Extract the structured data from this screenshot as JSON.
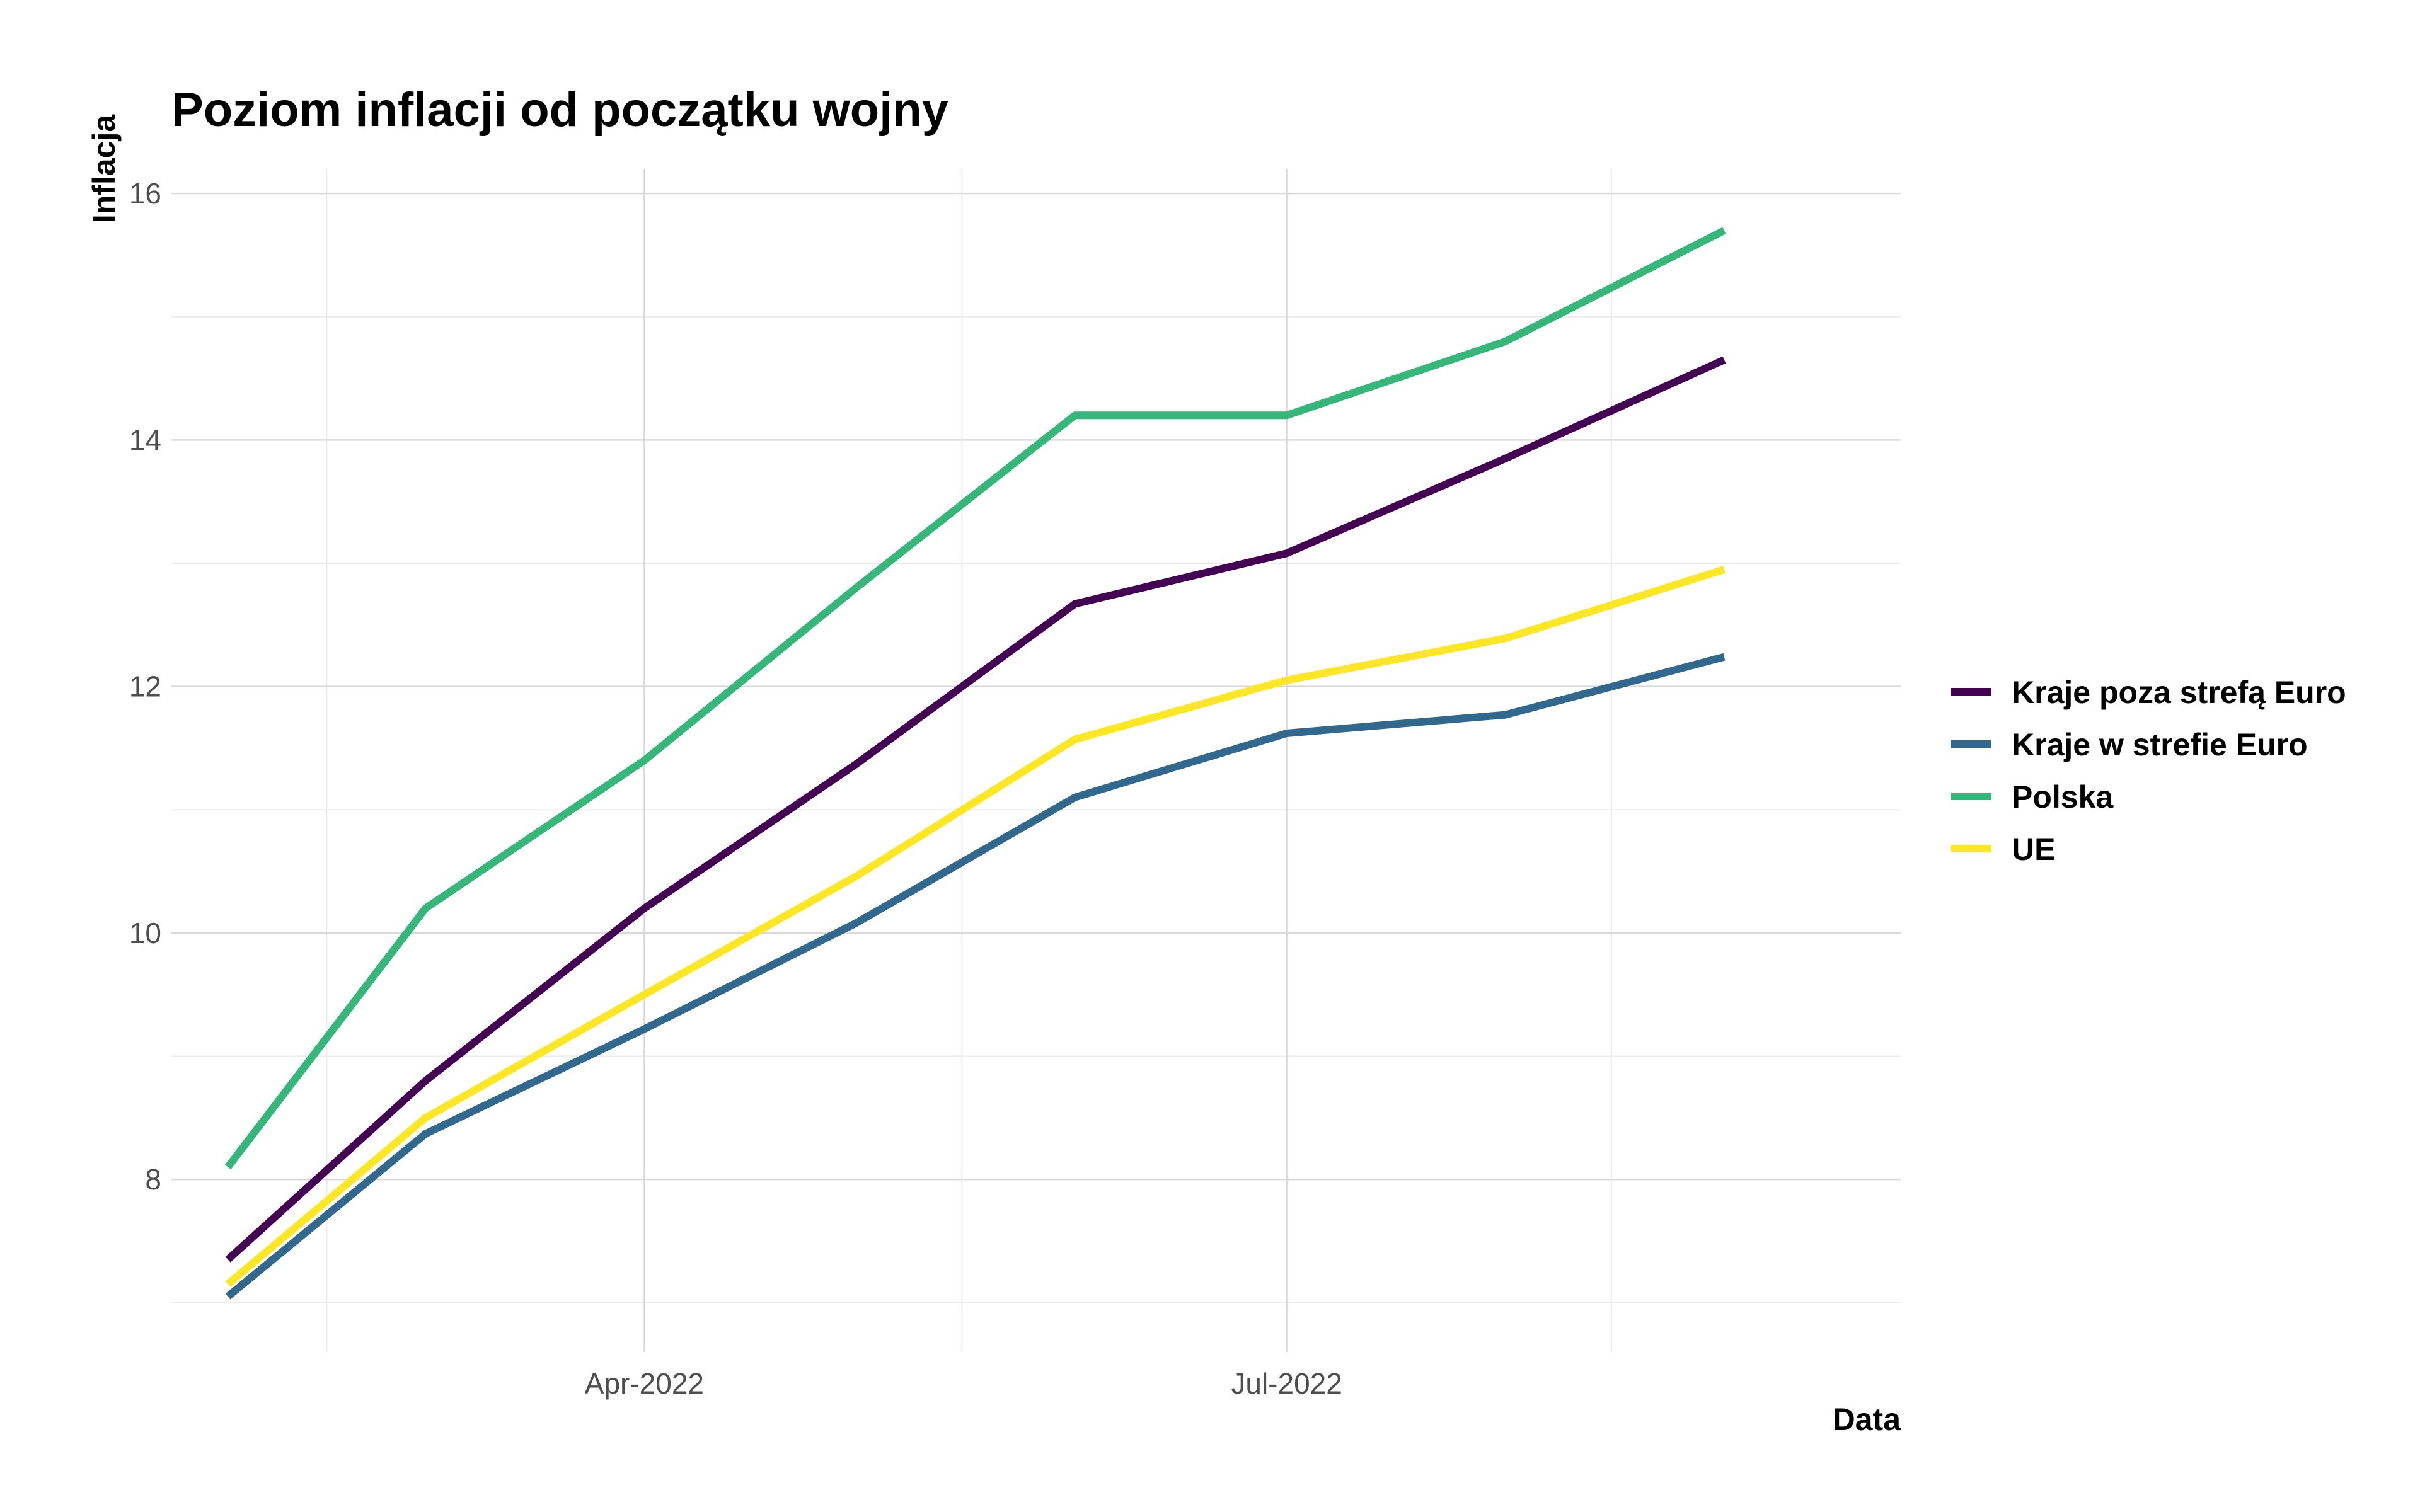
{
  "chart_data": {
    "type": "line",
    "title": "Poziom inflacji od początku wojny",
    "xlabel": "Data",
    "ylabel": "Inflacja",
    "x": [
      "2022-02-01",
      "2022-03-01",
      "2022-04-01",
      "2022-05-01",
      "2022-06-01",
      "2022-07-01",
      "2022-08-01",
      "2022-09-01"
    ],
    "x_ticks": [
      {
        "date": "2022-04-01",
        "label": "Apr-2022"
      },
      {
        "date": "2022-07-01",
        "label": "Jul-2022"
      }
    ],
    "x_minor_ticks": [
      "2022-02-15",
      "2022-05-16",
      "2022-08-16"
    ],
    "xlim": [
      "2022-01-24",
      "2022-09-26"
    ],
    "ylim": [
      6.6,
      16.2
    ],
    "y_ticks": [
      8,
      10,
      12,
      14,
      16
    ],
    "y_minor_ticks": [
      7,
      9,
      11,
      13,
      15
    ],
    "grid": true,
    "legend_position": "right",
    "series": [
      {
        "name": "Kraje poza strefą Euro",
        "color": "#440154",
        "values": [
          7.35,
          8.8,
          10.2,
          11.37,
          12.67,
          13.08,
          13.85,
          14.65
        ]
      },
      {
        "name": "Kraje w strefie Euro",
        "color": "#31688e",
        "values": [
          7.05,
          8.37,
          9.22,
          10.08,
          11.1,
          11.62,
          11.77,
          12.24
        ]
      },
      {
        "name": "Polska",
        "color": "#35b779",
        "values": [
          8.1,
          10.2,
          11.4,
          12.8,
          14.2,
          14.2,
          14.8,
          15.7
        ]
      },
      {
        "name": "UE",
        "color": "#fde725",
        "values": [
          7.15,
          8.5,
          9.5,
          10.46,
          11.57,
          12.05,
          12.39,
          12.95
        ]
      }
    ]
  }
}
